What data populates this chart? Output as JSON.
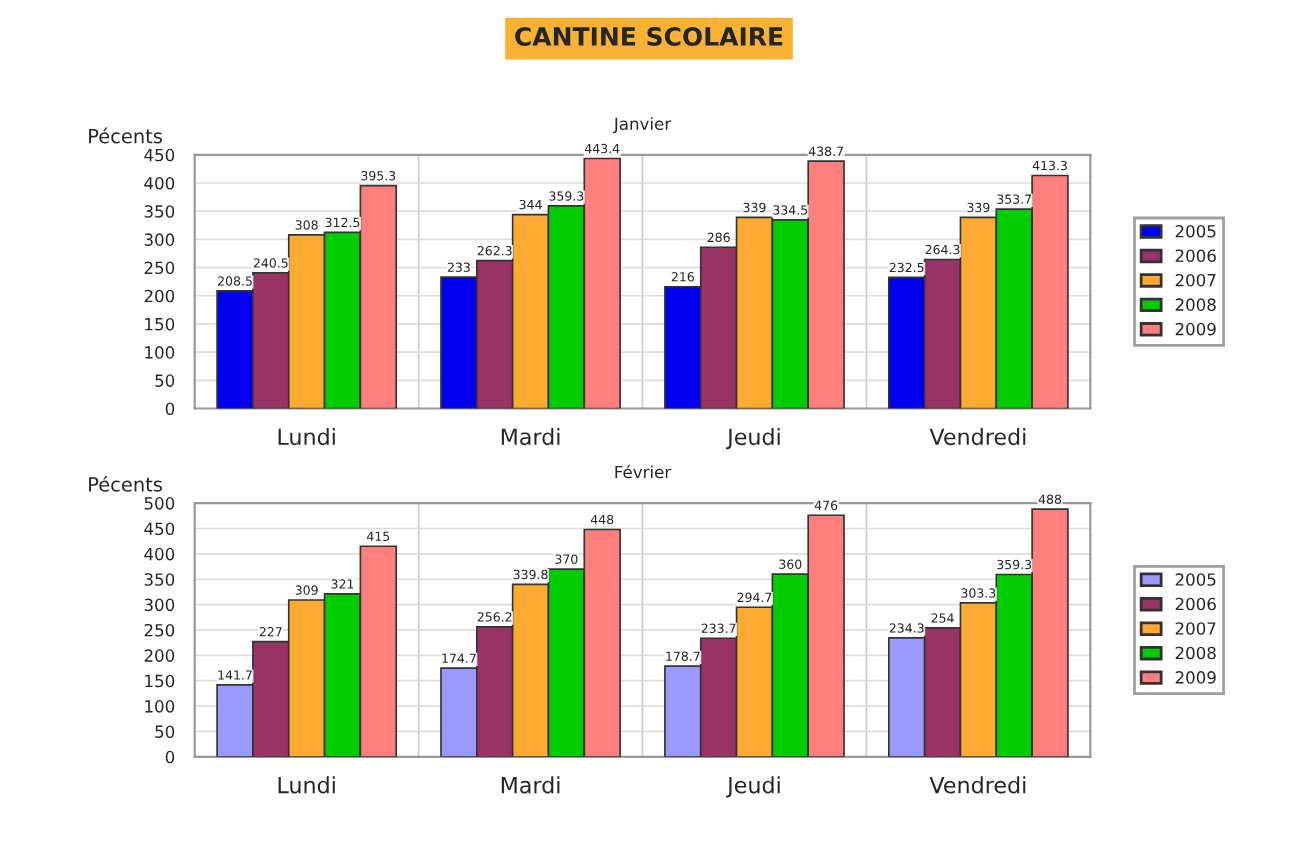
{
  "chart_data": [
    {
      "type": "bar",
      "title": "CANTINE SCOLAIRE",
      "subtitle": "Janvier",
      "ylabel": "Pécents",
      "categories": [
        "Lundi",
        "Mardi",
        "Jeudi",
        "Vendredi"
      ],
      "series": [
        {
          "name": "2005",
          "color": "#0000ee",
          "values": [
            208.5,
            233,
            216,
            232.5
          ]
        },
        {
          "name": "2006",
          "color": "#993366",
          "values": [
            240.5,
            262.3,
            286,
            264.3
          ]
        },
        {
          "name": "2007",
          "color": "#ffaa33",
          "values": [
            308,
            344,
            339,
            339
          ]
        },
        {
          "name": "2008",
          "color": "#00cc00",
          "values": [
            312.5,
            359.3,
            334.5,
            353.7
          ]
        },
        {
          "name": "2009",
          "color": "#ff7f7f",
          "values": [
            395.3,
            443.4,
            438.7,
            413.3
          ]
        }
      ],
      "ylim": [
        0,
        450
      ],
      "yticks": [
        0,
        50,
        100,
        150,
        200,
        250,
        300,
        350,
        400,
        450
      ],
      "grid": true,
      "legend": "right",
      "data_labels": true
    },
    {
      "type": "bar",
      "subtitle": "Février",
      "ylabel": "Pécents",
      "categories": [
        "Lundi",
        "Mardi",
        "Jeudi",
        "Vendredi"
      ],
      "series": [
        {
          "name": "2005",
          "color": "#9999ff",
          "values": [
            141.7,
            174.7,
            178.7,
            234.3
          ]
        },
        {
          "name": "2006",
          "color": "#993366",
          "values": [
            227,
            256.2,
            233.7,
            254
          ]
        },
        {
          "name": "2007",
          "color": "#ffaa33",
          "values": [
            309,
            339.8,
            294.7,
            303.3
          ]
        },
        {
          "name": "2008",
          "color": "#00cc00",
          "values": [
            321,
            370,
            360,
            359.3
          ]
        },
        {
          "name": "2009",
          "color": "#ff7f7f",
          "values": [
            415,
            448,
            476,
            488
          ]
        }
      ],
      "ylim": [
        0,
        500
      ],
      "yticks": [
        0,
        50,
        100,
        150,
        200,
        250,
        300,
        350,
        400,
        450,
        500
      ],
      "grid": true,
      "legend": "right",
      "data_labels": true
    }
  ]
}
